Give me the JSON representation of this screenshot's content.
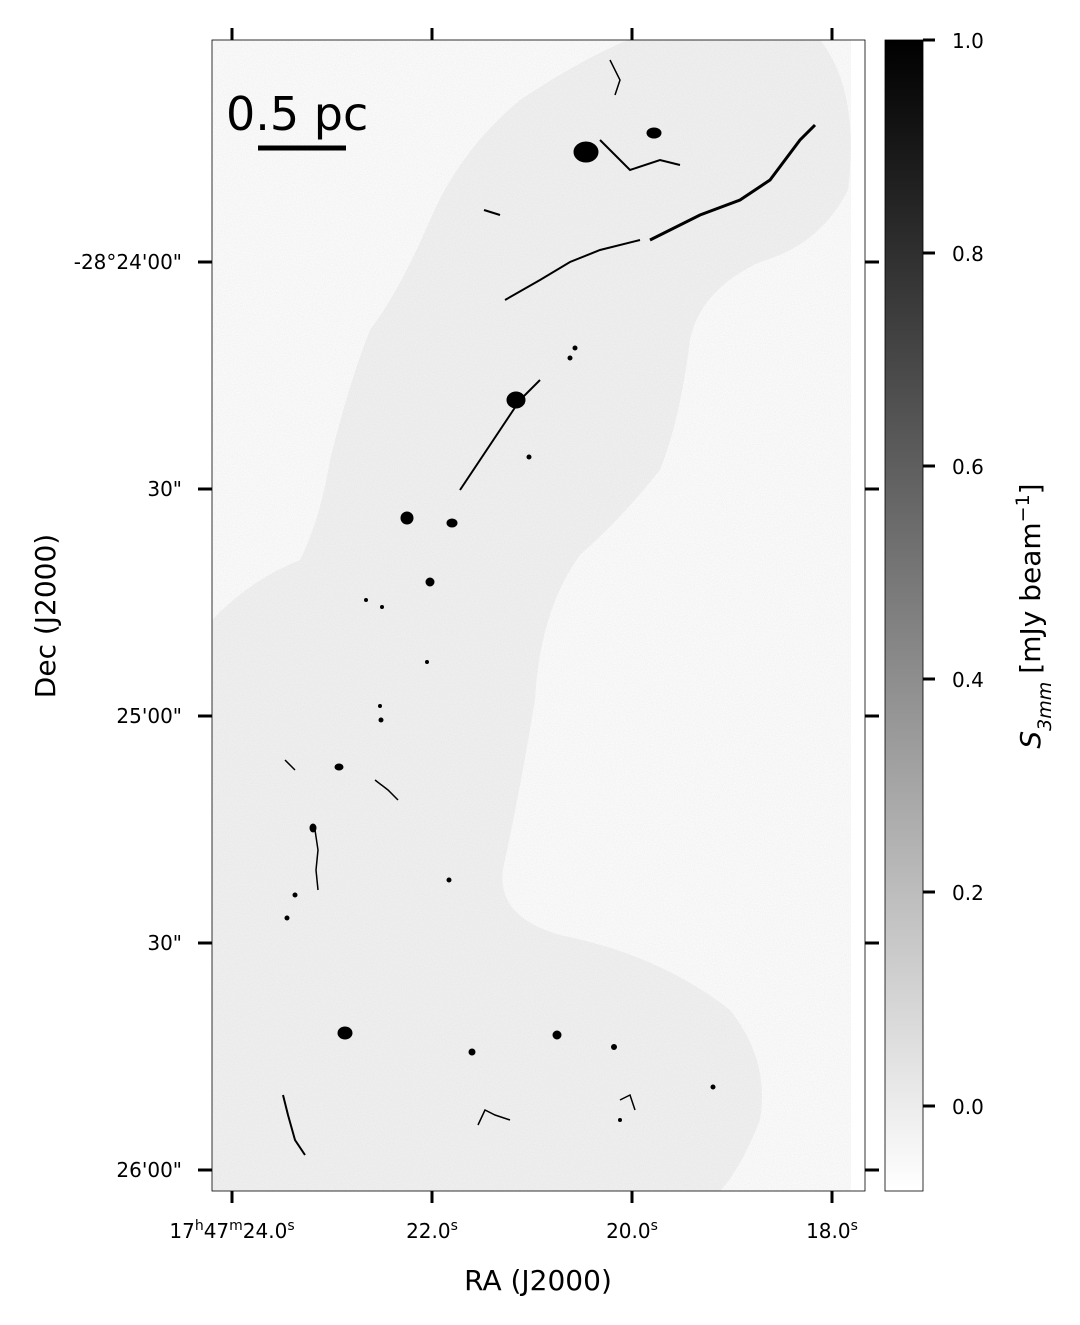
{
  "image": {
    "description_free": true,
    "colormap": "gray_r",
    "footprint_color": "#f4f4f4",
    "background": "#ffffff"
  },
  "scalebar": {
    "label": "0.5 pc"
  },
  "x_axis": {
    "title": "RA (J2000)",
    "ticks": [
      {
        "main": "17",
        "sup1": "h",
        "mid": "47",
        "sup2": "m",
        "tail": "24.0",
        "sup3": "s"
      },
      {
        "main": "22.0",
        "sup1": "s"
      },
      {
        "main": "20.0",
        "sup1": "s"
      },
      {
        "main": "18.0",
        "sup1": "s"
      }
    ]
  },
  "y_axis": {
    "title": "Dec (J2000)",
    "ticks": [
      "-28°24'00\"",
      "30\"",
      "25'00\"",
      "30\"",
      "26'00\""
    ]
  },
  "colorbar": {
    "title_symbol": "S",
    "title_sub": "3mm",
    "title_unit": "[mJy beam",
    "title_sup": "−1",
    "title_close": "]",
    "ticks": [
      "1.0",
      "0.8",
      "0.6",
      "0.4",
      "0.2",
      "0.0"
    ],
    "range": [
      -0.08,
      1.0
    ]
  }
}
